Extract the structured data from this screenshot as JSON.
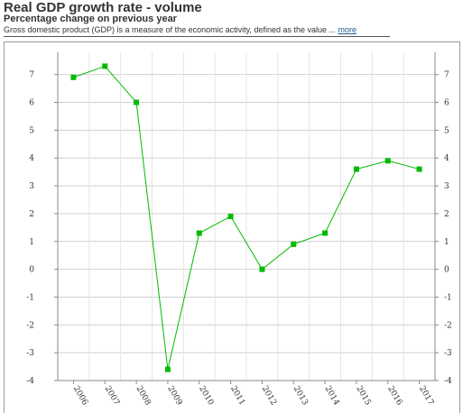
{
  "header": {
    "title": "Real GDP growth rate - volume",
    "subtitle": "Percentage change on previous year",
    "description": "Gross domestic product (GDP) is a measure of the economic activity, defined as the value ...",
    "more_link": "more"
  },
  "chart_data": {
    "type": "line",
    "title": "Real GDP growth rate - volume",
    "subtitle": "Percentage change on previous year",
    "xlabel": "",
    "ylabel": "",
    "x": [
      "2006",
      "2007",
      "2008",
      "2009",
      "2010",
      "2011",
      "2012",
      "2013",
      "2014",
      "2015",
      "2016",
      "2017"
    ],
    "series": [
      {
        "values": [
          6.9,
          7.3,
          6.0,
          -3.6,
          1.3,
          1.9,
          0.0,
          0.9,
          1.3,
          3.6,
          3.9,
          3.6
        ],
        "color": "#00bb00"
      }
    ],
    "yticks": [
      "-4",
      "-3",
      "-2",
      "-1",
      "0",
      "1",
      "2",
      "3",
      "4",
      "5",
      "6",
      "7"
    ],
    "ylim": [
      -4,
      7.8
    ],
    "grid": true,
    "y_axis_both_sides": true,
    "colors": {
      "line": "#00bb00",
      "marker": "#00bb00",
      "grid": "#d0d0d0"
    }
  }
}
